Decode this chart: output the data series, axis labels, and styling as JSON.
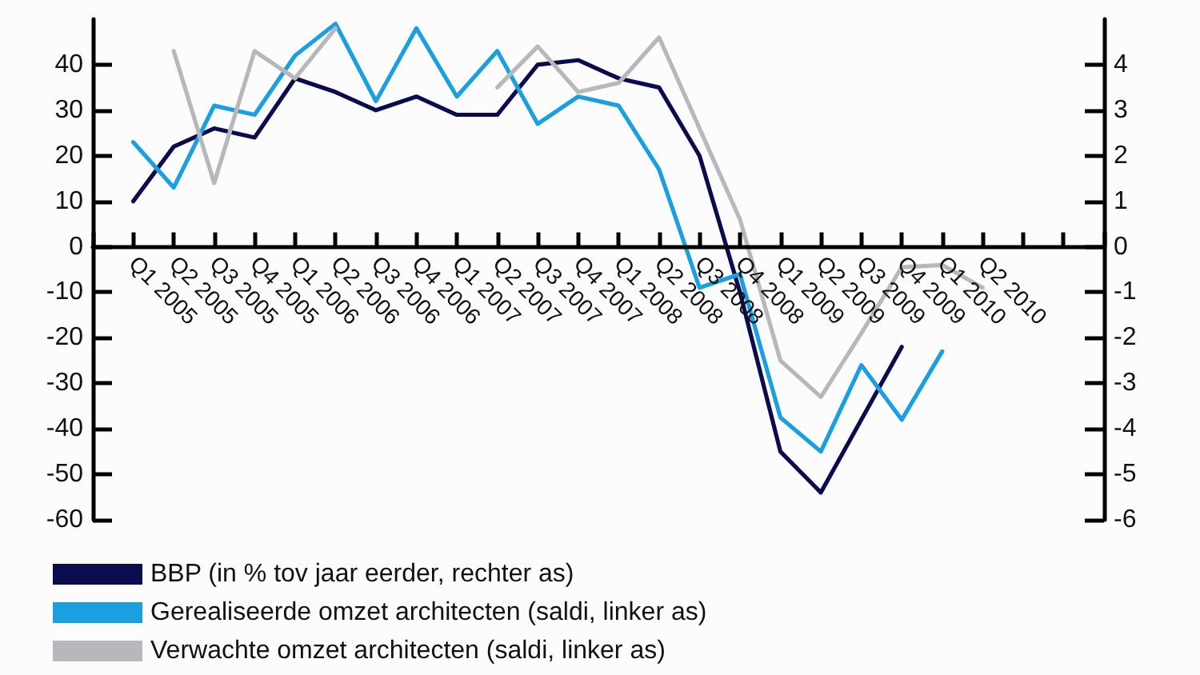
{
  "chart_data": {
    "type": "line",
    "categories": [
      "Q1 2005",
      "Q2 2005",
      "Q3 2005",
      "Q4 2005",
      "Q1 2006",
      "Q2 2006",
      "Q3 2006",
      "Q4 2006",
      "Q1 2007",
      "Q2 2007",
      "Q3 2007",
      "Q4 2007",
      "Q1 2008",
      "Q2 2008",
      "Q3 2008",
      "Q4 2008",
      "Q1 2009",
      "Q2 2009",
      "Q3 2009",
      "Q4 2009",
      "Q1 2010",
      "Q2 2010"
    ],
    "series": [
      {
        "name": "BBP (in % tov jaar eerder, rechter as)",
        "color": "#0b0b4f",
        "axis": "y2",
        "values": [
          1.0,
          2.2,
          2.6,
          2.4,
          3.7,
          3.4,
          3.0,
          3.3,
          2.9,
          2.9,
          4.0,
          4.1,
          3.7,
          3.5,
          2.0,
          -1.0,
          -4.5,
          -5.4,
          -3.8,
          -2.2,
          null,
          null
        ]
      },
      {
        "name": "Gerealiseerde omzet architecten (saldi, linker as)",
        "color": "#1a9fe0",
        "values": [
          23,
          13,
          31,
          29,
          42,
          49,
          32,
          48,
          33,
          43,
          27,
          33,
          31,
          17,
          -9,
          -6,
          -37.5,
          -45,
          -26,
          -38,
          -23,
          null
        ]
      },
      {
        "name": "Verwachte omzet architecten (saldi, linker as)",
        "color": "#b8b8bc",
        "values": [
          null,
          43,
          14,
          43,
          37,
          48,
          null,
          null,
          null,
          35,
          44,
          34,
          36,
          46,
          26,
          6,
          -25,
          -33,
          -19,
          -4.5,
          -4,
          -9
        ]
      }
    ],
    "ylim": [
      -60,
      50
    ],
    "yticks": [
      -60,
      -50,
      -40,
      -30,
      -20,
      -10,
      0,
      10,
      20,
      30,
      40
    ],
    "y2lim": [
      -6,
      5
    ],
    "y2ticks": [
      -6,
      -5,
      -4,
      -3,
      -2,
      -1,
      0,
      1,
      2,
      3,
      4
    ],
    "grid": false,
    "legend": "bottom",
    "marker": "none",
    "line_style": "solid"
  }
}
